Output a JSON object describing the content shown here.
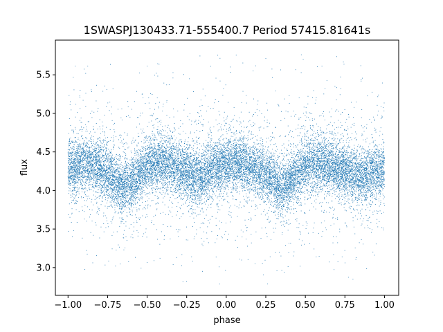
{
  "chart_data": {
    "type": "scatter",
    "title": "1SWASPJ130433.71-555400.7 Period 57415.81641s",
    "xlabel": "phase",
    "ylabel": "flux",
    "xlim": [
      -1.08,
      1.09
    ],
    "ylim": [
      2.64,
      5.95
    ],
    "xticks": [
      -1.0,
      -0.75,
      -0.5,
      -0.25,
      0.0,
      0.25,
      0.5,
      0.75,
      1.0
    ],
    "xtick_labels": [
      "−1.00",
      "−0.75",
      "−0.50",
      "−0.25",
      "0.00",
      "0.25",
      "0.50",
      "0.75",
      "1.00"
    ],
    "yticks": [
      3.0,
      3.5,
      4.0,
      4.5,
      5.0,
      5.5
    ],
    "ytick_labels": [
      "3.0",
      "3.5",
      "4.0",
      "4.5",
      "5.0",
      "5.5"
    ],
    "grid": false,
    "marker_color": "#1f77b4",
    "series": [
      {
        "phase_range": [
          -1.0,
          1.0
        ],
        "light_curve": {
          "phase": [
            -1.0,
            -0.9,
            -0.8,
            -0.7,
            -0.65,
            -0.6,
            -0.5,
            -0.4,
            -0.3,
            -0.2,
            -0.15,
            -0.1,
            0.0,
            0.1,
            0.2,
            0.3,
            0.35,
            0.4,
            0.5,
            0.6,
            0.7,
            0.8,
            0.85,
            0.9,
            1.0
          ],
          "flux": [
            4.28,
            4.36,
            4.3,
            4.13,
            4.03,
            4.12,
            4.33,
            4.37,
            4.28,
            4.2,
            4.18,
            4.27,
            4.35,
            4.35,
            4.27,
            4.13,
            4.03,
            4.12,
            4.33,
            4.37,
            4.28,
            4.2,
            4.18,
            4.24,
            4.28
          ]
        },
        "scatter_sd_core": 0.17,
        "outlier_range": [
          2.78,
          5.8
        ],
        "n_points": 17000
      }
    ]
  }
}
